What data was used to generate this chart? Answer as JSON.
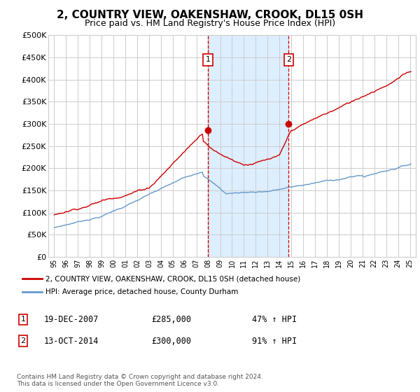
{
  "title": "2, COUNTRY VIEW, OAKENSHAW, CROOK, DL15 0SH",
  "subtitle": "Price paid vs. HM Land Registry's House Price Index (HPI)",
  "legend_line1": "2, COUNTRY VIEW, OAKENSHAW, CROOK, DL15 0SH (detached house)",
  "legend_line2": "HPI: Average price, detached house, County Durham",
  "purchase1_date": "19-DEC-2007",
  "purchase1_price": 285000,
  "purchase1_label": "1",
  "purchase1_year": 2007.96,
  "purchase2_date": "13-OCT-2014",
  "purchase2_price": 300000,
  "purchase2_label": "2",
  "purchase2_year": 2014.78,
  "footer": "Contains HM Land Registry data © Crown copyright and database right 2024.\nThis data is licensed under the Open Government Licence v3.0.",
  "red_color": "#cc0000",
  "blue_color": "#6699cc",
  "shade_color": "#ddeeff",
  "background_color": "#ffffff",
  "grid_color": "#cccccc",
  "ylim": [
    0,
    500000
  ],
  "xlim_start": 1994.5,
  "xlim_end": 2025.5
}
